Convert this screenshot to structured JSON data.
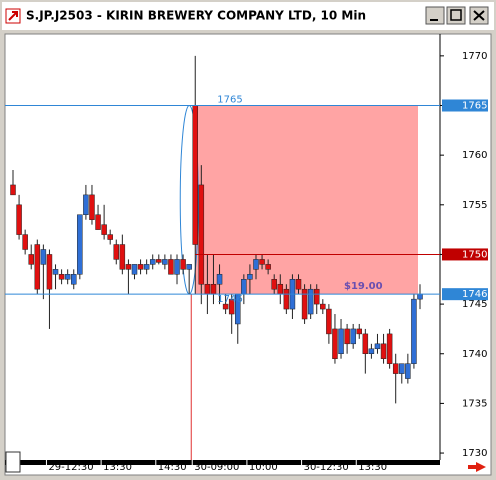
{
  "chart_data": {
    "type": "candlestick",
    "title": "S.JP.J2503 - KIRIN BREWERY COMPANY LTD, 10 Min",
    "categories": [
      null,
      null,
      null,
      null,
      null,
      null,
      "29-12:30",
      null,
      null,
      null,
      null,
      null,
      null,
      null,
      null,
      "13:30",
      null,
      null,
      null,
      null,
      null,
      null,
      null,
      null,
      "14:30",
      null,
      null,
      null,
      null,
      null,
      "30-09:00",
      null,
      null,
      null,
      null,
      null,
      null,
      null,
      null,
      "10:00",
      null,
      null,
      null,
      null,
      null,
      null,
      null,
      null,
      "30-12:30",
      null,
      null,
      null,
      null,
      null,
      null,
      null,
      null,
      "13:30",
      null,
      null,
      null,
      null,
      null,
      null,
      null,
      null,
      null,
      null
    ],
    "open": [
      1757,
      1755,
      1752,
      1750,
      1751,
      1749,
      1750,
      1748,
      1748,
      1747.5,
      1747,
      1748,
      1754,
      1756,
      1754,
      1753,
      1752,
      1751,
      1751,
      1749,
      1748,
      1749,
      1748.5,
      1749,
      1749.5,
      1749,
      1749.5,
      1748,
      1749.5,
      1748.5,
      1765,
      1757,
      1747,
      1747,
      1747,
      1745,
      1745.5,
      1743,
      1746,
      1747.5,
      1748.5,
      1749.5,
      1749,
      1747.5,
      1747,
      1746.5,
      1744.5,
      1747.5,
      1746.5,
      1744,
      1746.5,
      1745,
      1744.5,
      1742.5,
      1740,
      1742.5,
      1741,
      1742.5,
      1742,
      1740,
      1740.5,
      1741,
      1742,
      1739,
      1738,
      1737.5,
      1739,
      1745.5
    ],
    "high": [
      1758.5,
      1756,
      1752.5,
      1751,
      1751.5,
      1751,
      1750.5,
      1749,
      1748.5,
      1748.5,
      1748.5,
      1754,
      1757,
      1757,
      1755,
      1755,
      1752.5,
      1751.5,
      1752,
      1749.5,
      1749,
      1749.5,
      1749.5,
      1750,
      1750,
      1750,
      1750,
      1750,
      1750,
      1749,
      1770,
      1759,
      1750,
      1750,
      1749,
      1746,
      1746,
      1746,
      1748,
      1749,
      1750,
      1750,
      1749.5,
      1748,
      1748,
      1747,
      1748,
      1748,
      1747,
      1747,
      1747,
      1745.5,
      1745,
      1744,
      1743.5,
      1743,
      1743,
      1743,
      1742.5,
      1741,
      1742,
      1742,
      1742.5,
      1740,
      1739,
      1740,
      1746,
      1747
    ],
    "low": [
      1756,
      1751.5,
      1750,
      1748.5,
      1746,
      1745.5,
      1742.5,
      1746.5,
      1747,
      1747,
      1746.5,
      1747.5,
      1753.5,
      1753,
      1752.5,
      1751.5,
      1751,
      1749,
      1748,
      1746,
      1747.5,
      1748,
      1748,
      1748.5,
      1749,
      1748.5,
      1748,
      1747,
      1748,
      1746,
      1746,
      1745,
      1744,
      1745,
      1745,
      1744,
      1742,
      1741,
      1745,
      1746,
      1747.5,
      1748.5,
      1748,
      1746,
      1745,
      1744,
      1743.5,
      1746,
      1743,
      1743.5,
      1744,
      1744,
      1741,
      1739,
      1739.5,
      1740,
      1740.5,
      1741.5,
      1738,
      1739.5,
      1740,
      1739,
      1738.5,
      1735,
      1737,
      1737,
      1738.5,
      1744.5
    ],
    "close": [
      1756,
      1752,
      1750.5,
      1749,
      1746.5,
      1750.5,
      1746.5,
      1748.5,
      1747.5,
      1748,
      1748,
      1754,
      1756,
      1753.5,
      1752.5,
      1752,
      1751.5,
      1749.5,
      1748.5,
      1748.5,
      1749,
      1748.5,
      1749,
      1749.5,
      1749.2,
      1749.5,
      1748,
      1749.5,
      1748.5,
      1749,
      1751,
      1747,
      1746,
      1746,
      1748,
      1744.5,
      1744,
      1746,
      1747.5,
      1748,
      1749.5,
      1749,
      1748.5,
      1746.5,
      1746,
      1744.5,
      1747.5,
      1746.5,
      1743.5,
      1746.5,
      1745,
      1744.5,
      1742,
      1739.5,
      1742.5,
      1741,
      1742.5,
      1742,
      1740,
      1740.5,
      1741,
      1739.5,
      1739,
      1738,
      1739,
      1739,
      1745.5,
      1746
    ],
    "up_color": "#2f6fd6",
    "down_color": "#e01010",
    "ylim": [
      1729.3,
      1772.1
    ],
    "yticks": [
      1730,
      1735,
      1740,
      1745,
      1750,
      1755,
      1760,
      1765,
      1770
    ],
    "price_lines": [
      {
        "value": 1765,
        "color": "#2f86d6"
      },
      {
        "value": 1750,
        "color": "#c00000"
      },
      {
        "value": 1746,
        "color": "#2f86d6"
      }
    ],
    "range": {
      "high": 1765,
      "low": 1746,
      "change_label": "$19.00"
    }
  }
}
